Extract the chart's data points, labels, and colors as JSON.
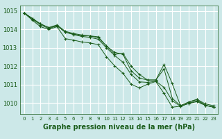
{
  "background_color": "#cce8e8",
  "grid_color": "#ffffff",
  "line_color": "#1a5c1a",
  "marker_color": "#1a5c1a",
  "xlabel": "Graphe pression niveau de la mer (hPa)",
  "xlabel_fontsize": 7,
  "ylabel_fontsize": 6.5,
  "ylim": [
    1009.4,
    1015.3
  ],
  "xlim": [
    -0.5,
    23.5
  ],
  "yticks": [
    1010,
    1011,
    1012,
    1013,
    1014,
    1015
  ],
  "xticks": [
    0,
    1,
    2,
    3,
    4,
    5,
    6,
    7,
    8,
    9,
    10,
    11,
    12,
    13,
    14,
    15,
    16,
    17,
    18,
    19,
    20,
    21,
    22,
    23
  ],
  "series": [
    [
      1014.9,
      1014.6,
      1014.3,
      1014.1,
      1014.2,
      1013.85,
      1013.75,
      1013.65,
      1013.65,
      1013.6,
      1013.1,
      1012.65,
      1012.7,
      1012.0,
      1011.55,
      1011.25,
      1011.25,
      1012.1,
      1011.05,
      1009.85,
      1010.05,
      1010.2,
      1009.95,
      1009.85
    ],
    [
      1014.9,
      1014.6,
      1014.3,
      1014.1,
      1014.25,
      1013.9,
      1013.78,
      1013.7,
      1013.65,
      1013.55,
      1013.1,
      1012.75,
      1012.65,
      1011.75,
      1011.35,
      1011.25,
      1011.25,
      1011.85,
      1010.25,
      1009.85,
      1010.05,
      1010.18,
      1009.88,
      1009.78
    ],
    [
      1014.9,
      1014.55,
      1014.25,
      1014.05,
      1014.2,
      1013.85,
      1013.72,
      1013.62,
      1013.57,
      1013.47,
      1013.0,
      1012.58,
      1012.22,
      1011.55,
      1011.15,
      1011.12,
      1011.18,
      1010.85,
      1010.12,
      1009.82,
      1009.98,
      1010.12,
      1009.87,
      1009.77
    ],
    [
      1014.9,
      1014.5,
      1014.15,
      1014.0,
      1014.15,
      1013.5,
      1013.42,
      1013.32,
      1013.27,
      1013.17,
      1012.52,
      1012.02,
      1011.62,
      1011.02,
      1010.82,
      1011.02,
      1011.17,
      1010.52,
      1009.77,
      1009.82,
      1009.97,
      1010.07,
      1009.87,
      1009.77
    ]
  ]
}
